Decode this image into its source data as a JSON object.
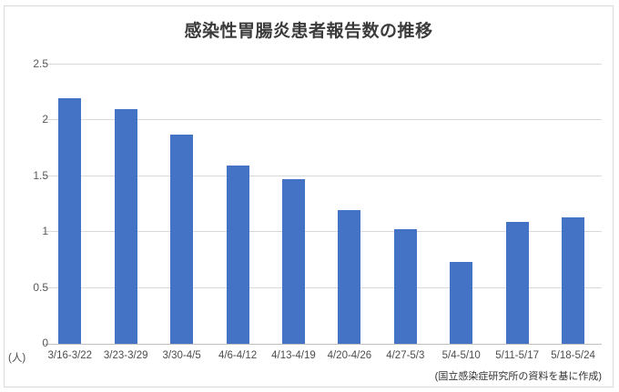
{
  "chart_data": {
    "type": "bar",
    "title": "感染性胃腸炎患者報告数の推移",
    "unit_label": "(人)",
    "source_note": "(国立感染症研究所の資料を基に作成)",
    "categories": [
      "3/16-3/22",
      "3/23-3/29",
      "3/30-4/5",
      "4/6-4/12",
      "4/13-4/19",
      "4/20-4/26",
      "4/27-5/3",
      "5/4-5/10",
      "5/11-5/17",
      "5/18-5/24"
    ],
    "values": [
      2.2,
      2.1,
      1.87,
      1.6,
      1.47,
      1.2,
      1.03,
      0.73,
      1.09,
      1.13
    ],
    "ylim": [
      0,
      2.5
    ],
    "ytick_labels": [
      "0",
      "0.5",
      "1",
      "1.5",
      "2",
      "2.5"
    ],
    "ytick_values": [
      0,
      0.5,
      1,
      1.5,
      2,
      2.5
    ],
    "bar_color": "#4472c4",
    "grid": true,
    "legend": "none",
    "xlabel": "",
    "ylabel": ""
  }
}
